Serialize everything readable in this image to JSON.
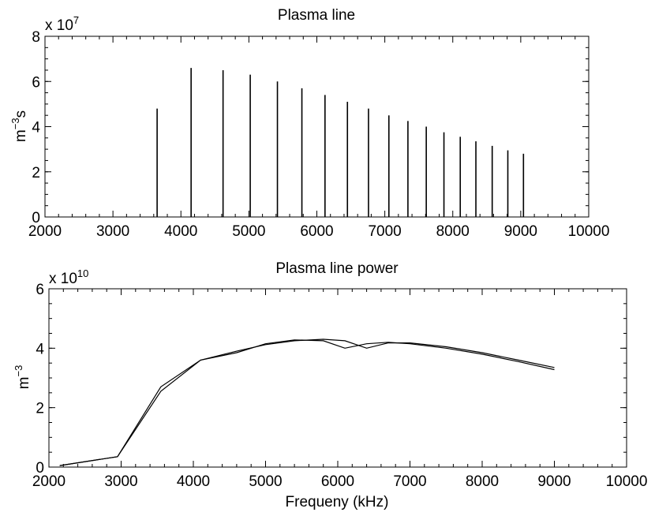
{
  "chart_data": [
    {
      "type": "bar",
      "title": "Plasma line",
      "xlabel": "",
      "ylabel_base": "m",
      "ylabel_sup": "−3",
      "ylabel_tail": "s",
      "y_multiplier_base": "x 10",
      "y_multiplier_exp": "7",
      "xlim": [
        2000,
        10000
      ],
      "ylim": [
        0,
        8
      ],
      "xticks": [
        2000,
        3000,
        4000,
        5000,
        6000,
        7000,
        8000,
        9000,
        10000
      ],
      "yticks": [
        0,
        2,
        4,
        6,
        8
      ],
      "grid": false,
      "x": [
        3650,
        4150,
        4620,
        5020,
        5420,
        5780,
        6120,
        6450,
        6760,
        7060,
        7340,
        7610,
        7870,
        8110,
        8340,
        8580,
        8810,
        9040
      ],
      "values": [
        4.8,
        6.6,
        6.5,
        6.3,
        6.0,
        5.7,
        5.4,
        5.1,
        4.8,
        4.5,
        4.25,
        4.0,
        3.75,
        3.55,
        3.35,
        3.15,
        2.95,
        2.8
      ]
    },
    {
      "type": "line",
      "title": "Plasma line power",
      "xlabel": "Frequeny (kHz)",
      "ylabel_base": "m",
      "ylabel_sup": "−3",
      "y_multiplier_base": "x 10",
      "y_multiplier_exp": "10",
      "xlim": [
        2000,
        10000
      ],
      "ylim": [
        0,
        6
      ],
      "xticks": [
        2000,
        3000,
        4000,
        5000,
        6000,
        7000,
        8000,
        9000,
        10000
      ],
      "yticks": [
        0,
        2,
        4,
        6
      ],
      "grid": false,
      "series": [
        {
          "x": [
            2150,
            2950,
            3550,
            4100,
            4600,
            5000,
            5400,
            5800,
            6100,
            6400,
            6700,
            7000,
            7500,
            8000,
            8500,
            9000
          ],
          "y": [
            0.05,
            0.35,
            2.7,
            3.6,
            3.9,
            4.12,
            4.25,
            4.3,
            4.25,
            4.0,
            4.18,
            4.18,
            4.05,
            3.85,
            3.6,
            3.35
          ]
        },
        {
          "x": [
            2150,
            2950,
            3550,
            4100,
            4600,
            5000,
            5400,
            5800,
            6100,
            6400,
            6700,
            7000,
            7500,
            8000,
            8500,
            9000
          ],
          "y": [
            0.05,
            0.35,
            2.55,
            3.6,
            3.85,
            4.15,
            4.28,
            4.25,
            4.0,
            4.15,
            4.2,
            4.15,
            4.0,
            3.8,
            3.55,
            3.28
          ]
        }
      ]
    }
  ]
}
